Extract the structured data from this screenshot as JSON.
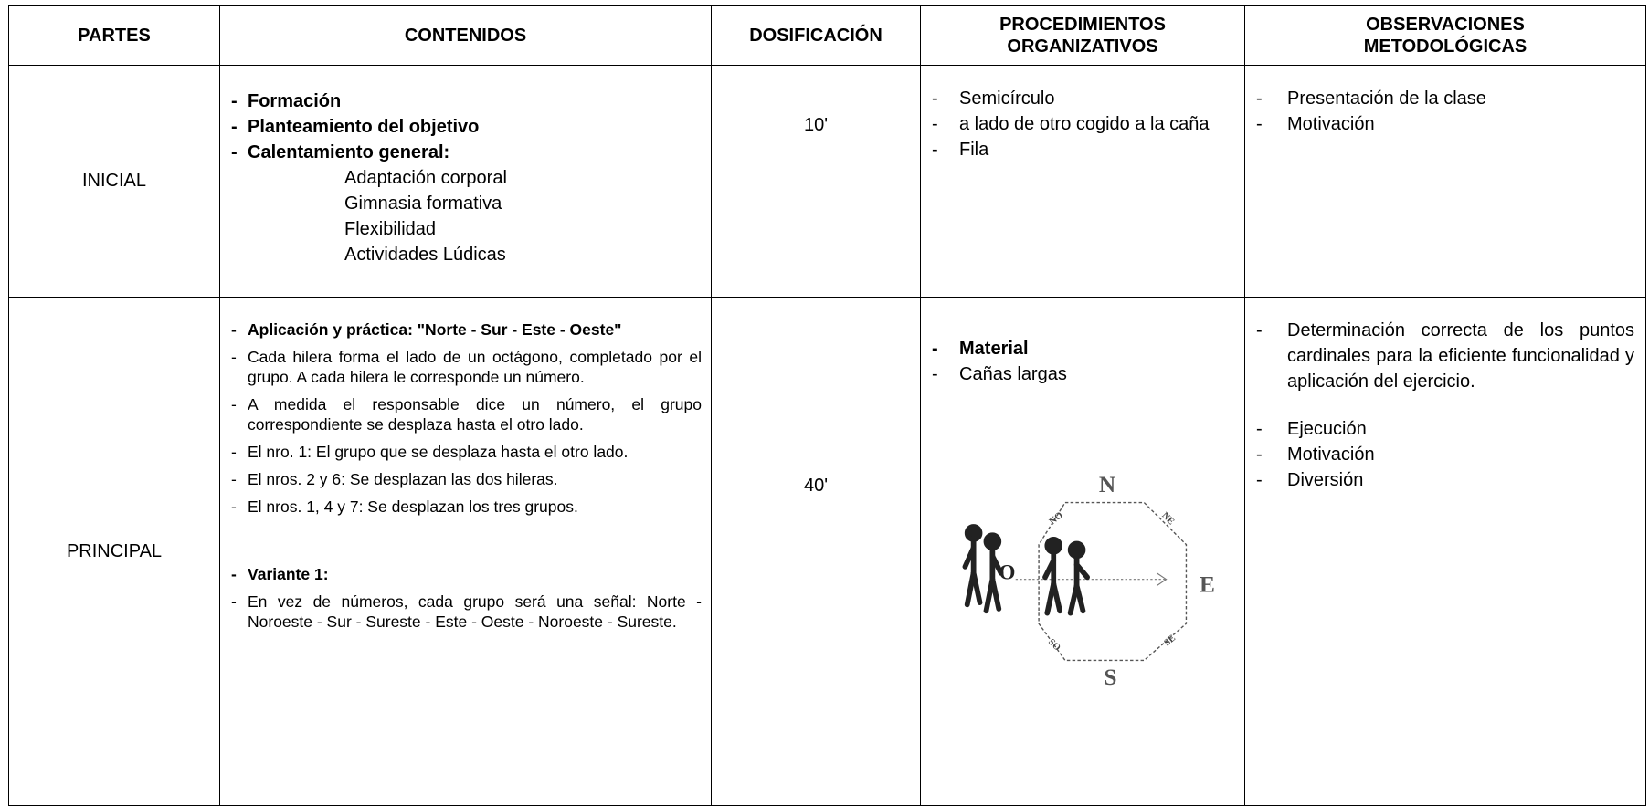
{
  "table": {
    "headers": [
      "PARTES",
      "CONTENIDOS",
      "DOSIFICACIÓN",
      "PROCEDIMIENTOS ORGANIZATIVOS",
      "OBSERVACIONES METODOLÓGICAS"
    ],
    "rows": [
      {
        "parte": "INICIAL",
        "contenidos": {
          "items": [
            "Formación",
            "Planteamiento del objetivo",
            "Calentamiento general:"
          ],
          "subitems": [
            "Adaptación corporal",
            "Gimnasia formativa",
            "Flexibilidad",
            "Actividades Lúdicas"
          ]
        },
        "dosificacion": "10'",
        "procedimientos": [
          "Semicírculo",
          "a lado de otro cogido a la caña",
          "Fila"
        ],
        "observaciones": [
          "Presentación de la clase",
          "Motivación"
        ]
      },
      {
        "parte": "PRINCIPAL",
        "contenidos": {
          "items": [
            "Aplicación y práctica: \"Norte - Sur - Este - Oeste\"",
            "Cada hilera forma el lado de un octágono, completado por el grupo.  A cada hilera le corresponde un número.",
            "A medida el responsable dice un número, el grupo correspondiente se desplaza hasta el otro lado.",
            "El nro. 1: El grupo que se desplaza hasta el otro lado.",
            "El nros. 2 y  6: Se desplazan las dos hileras.",
            "El nros. 1, 4 y  7: Se desplazan los tres grupos.",
            "Variante 1:",
            "En vez de números, cada grupo será una señal: Norte - Noroeste - Sur - Sureste - Este - Oeste - Noroeste - Sureste."
          ]
        },
        "dosificacion": "40'",
        "procedimientos": [
          "Material",
          "Cañas largas"
        ],
        "compass": {
          "n": "N",
          "e": "E",
          "s": "S",
          "o": "O",
          "no": "NO",
          "ne": "NE",
          "se": "SE",
          "so": "SO"
        },
        "observaciones": [
          "Determinación correcta de los puntos cardinales para la eficiente funcionalidad y aplicación del ejercicio.",
          "Ejecución",
          "Motivación",
          "Diversión"
        ]
      }
    ]
  }
}
